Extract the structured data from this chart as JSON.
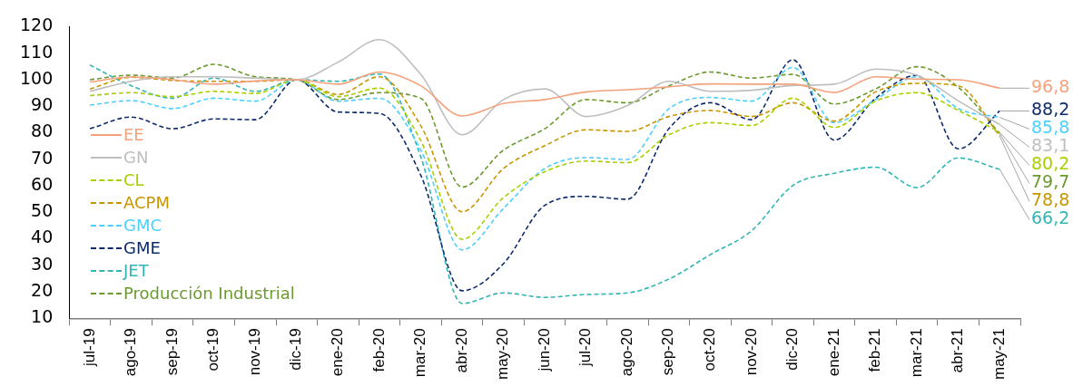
{
  "chart_data": {
    "type": "line",
    "categories": [
      "jul-19",
      "ago-19",
      "sep-19",
      "oct-19",
      "nov-19",
      "dic-19",
      "ene-20",
      "feb-20",
      "mar-20",
      "abr-20",
      "may-20",
      "jun-20",
      "jul-20",
      "ago-20",
      "sep-20",
      "oct-20",
      "nov-20",
      "dic-20",
      "ene-21",
      "feb-21",
      "mar-21",
      "abr-21",
      "may-21"
    ],
    "series": [
      {
        "name": "EE",
        "color": "#f5a27c",
        "line_style": "solid",
        "values": [
          99.1,
          101,
          100,
          98.3,
          99.5,
          100,
          98.3,
          102.9,
          97.7,
          86.3,
          91,
          92.5,
          95.4,
          96.2,
          97.3,
          98.4,
          98.3,
          98.3,
          95.2,
          101.1,
          100.2,
          100,
          96.8
        ],
        "value_labels": [
          null,
          null,
          null,
          null,
          null,
          null,
          null,
          null,
          null,
          null,
          null,
          null,
          null,
          null,
          null,
          null,
          null,
          null,
          null,
          null,
          null,
          null,
          "96,8"
        ]
      },
      {
        "name": "GN",
        "color": "#bfbfbf",
        "line_style": "solid",
        "values": [
          95.6,
          99.4,
          101.1,
          101.1,
          100.6,
          100,
          106.6,
          115.1,
          102,
          79.2,
          92.5,
          96.5,
          86.1,
          90.2,
          99.4,
          95.6,
          96,
          97.8,
          98.3,
          104,
          101.7,
          92,
          83.1
        ],
        "value_labels": [
          null,
          null,
          null,
          null,
          null,
          null,
          null,
          null,
          null,
          null,
          null,
          null,
          null,
          null,
          null,
          null,
          null,
          null,
          null,
          null,
          null,
          null,
          "83,1"
        ]
      },
      {
        "name": "CL",
        "color": "#a8d000",
        "line_style": "dashed",
        "values": [
          94,
          95.1,
          93.6,
          95.6,
          94.8,
          100,
          93.6,
          96.8,
          77,
          39.8,
          55.5,
          65.3,
          69.3,
          68.7,
          79.2,
          83.8,
          82.7,
          93,
          82,
          91.9,
          95.1,
          88.4,
          80.2
        ],
        "value_labels": [
          null,
          null,
          null,
          null,
          null,
          null,
          null,
          null,
          null,
          null,
          null,
          null,
          null,
          null,
          null,
          null,
          null,
          null,
          null,
          null,
          null,
          null,
          "80,2"
        ]
      },
      {
        "name": "ACPM",
        "color": "#c89600",
        "line_style": "dashed",
        "values": [
          96.5,
          100.9,
          99.7,
          99.4,
          99.4,
          100,
          94.4,
          101.1,
          82.7,
          50.2,
          66.5,
          75.1,
          81.1,
          80.5,
          86.1,
          88.4,
          86.1,
          91.3,
          84.4,
          95.4,
          98.6,
          97.7,
          78.8
        ],
        "value_labels": [
          null,
          null,
          null,
          null,
          null,
          null,
          null,
          null,
          null,
          null,
          null,
          null,
          null,
          null,
          null,
          null,
          null,
          null,
          null,
          null,
          null,
          null,
          "78,8"
        ]
      },
      {
        "name": "GMC",
        "color": "#4dcfff",
        "line_style": "dashed",
        "values": [
          90.4,
          92.1,
          89.1,
          93,
          91.9,
          100,
          91.9,
          93,
          73.5,
          35.8,
          51.4,
          66.5,
          70.6,
          69.9,
          89,
          93.3,
          91.9,
          104.6,
          83.8,
          92.5,
          101.1,
          89.1,
          85.8
        ],
        "value_labels": [
          null,
          null,
          null,
          null,
          null,
          null,
          null,
          null,
          null,
          null,
          null,
          null,
          null,
          null,
          null,
          null,
          null,
          null,
          null,
          null,
          null,
          null,
          "85,8"
        ]
      },
      {
        "name": "GME",
        "color": "#0d2a6b",
        "line_style": "dashed",
        "values": [
          81.5,
          85.9,
          81.5,
          85.2,
          84.9,
          100,
          87.8,
          87.3,
          64,
          20.4,
          30.6,
          52.6,
          56,
          54.9,
          81.5,
          91.3,
          84.9,
          107.5,
          77.2,
          93,
          101.7,
          73.9,
          88.2
        ],
        "value_labels": [
          null,
          null,
          null,
          null,
          null,
          null,
          null,
          null,
          null,
          null,
          null,
          null,
          null,
          null,
          null,
          null,
          null,
          null,
          null,
          null,
          null,
          null,
          "88,2"
        ]
      },
      {
        "name": "JET",
        "color": "#31b5b5",
        "line_style": "dashed",
        "values": [
          105.5,
          97.7,
          93,
          100.6,
          95.6,
          100,
          99.4,
          102.1,
          71,
          15.6,
          19.6,
          17.9,
          19,
          19.6,
          24.8,
          34,
          43,
          60.1,
          64.7,
          67,
          59.3,
          70.5,
          66.2
        ],
        "value_labels": [
          null,
          null,
          null,
          null,
          null,
          null,
          null,
          null,
          null,
          null,
          null,
          null,
          null,
          null,
          null,
          null,
          null,
          null,
          null,
          null,
          null,
          null,
          "66,2"
        ]
      },
      {
        "name": "Producción Industrial",
        "color": "#6b9a2f",
        "line_style": "dashed",
        "values": [
          100,
          101.7,
          100.6,
          105.8,
          101.1,
          100,
          92.5,
          95.1,
          93,
          59.5,
          73.4,
          81.5,
          92.5,
          91.3,
          97.7,
          102.9,
          100.6,
          102,
          90.8,
          96.5,
          104.9,
          97.1,
          79.7
        ],
        "value_labels": [
          null,
          null,
          null,
          null,
          null,
          null,
          null,
          null,
          null,
          null,
          null,
          null,
          null,
          null,
          null,
          null,
          null,
          null,
          null,
          null,
          null,
          null,
          "79,7"
        ]
      }
    ],
    "ylim": [
      10,
      120
    ],
    "yticks": [
      10,
      20,
      30,
      40,
      50,
      60,
      70,
      80,
      90,
      100,
      110,
      120
    ],
    "grid": false,
    "legend": "left",
    "marker": "none"
  }
}
